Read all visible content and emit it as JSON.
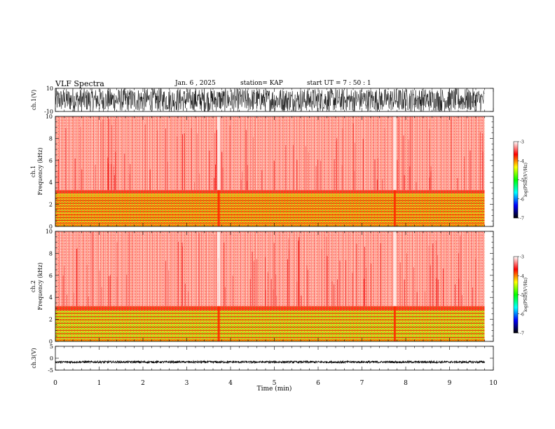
{
  "header": {
    "title": "VLF Spectra",
    "date": "Jan. 6 , 2025",
    "station": "station= KAP",
    "start": "start UT = 7 : 50 : 1"
  },
  "colorbar": {
    "ticks": [
      -3,
      -4,
      -5,
      -6,
      -7
    ],
    "label": "log(PSD)(V²/Hz)",
    "colors": [
      "#ffffff",
      "#ff0000",
      "#ffff00",
      "#00ff00",
      "#00ffff",
      "#0000ff",
      "#000000"
    ]
  },
  "chart_data": [
    {
      "type": "line",
      "name": "waveform-ch1",
      "ylabel": "ch.1(V)",
      "ylim": [
        -10,
        10
      ],
      "yticks": [
        "10",
        "-10"
      ],
      "xlim": [
        0,
        10
      ],
      "data_xmax": 9.8,
      "amplitude_range": [
        -10,
        10
      ]
    },
    {
      "type": "heatmap",
      "name": "spectrogram-ch1",
      "ylabel_lines": [
        "ch.1",
        "Frequency (kHz)"
      ],
      "ylim": [
        0,
        10
      ],
      "yticks": [
        0,
        2,
        4,
        6,
        8,
        10
      ],
      "xlim": [
        0,
        10
      ],
      "data_xmax": 9.8,
      "bands": [
        {
          "from": 0.0,
          "to": 0.2,
          "color": "#ff8c00"
        },
        {
          "from": 0.2,
          "to": 3.0,
          "color": "#f4b41a"
        },
        {
          "from": 3.0,
          "to": 3.3,
          "color": "#ff3b1f"
        },
        {
          "from": 3.3,
          "to": 10.0,
          "color": "#ffb3a8"
        }
      ],
      "lines_khz": [
        0.3,
        0.55,
        0.8,
        1.05,
        1.35,
        1.6,
        1.85,
        2.1,
        2.35,
        2.6
      ],
      "event_minutes": [
        3.73,
        7.75
      ]
    },
    {
      "type": "heatmap",
      "name": "spectrogram-ch2",
      "ylabel_lines": [
        "ch.2",
        "Frequency (kHz)"
      ],
      "ylim": [
        0,
        10
      ],
      "yticks": [
        0,
        2,
        4,
        6,
        8,
        10
      ],
      "xlim": [
        0,
        10
      ],
      "data_xmax": 9.8,
      "bands": [
        {
          "from": 0.0,
          "to": 0.2,
          "color": "#ff8c00"
        },
        {
          "from": 0.2,
          "to": 2.8,
          "color": "#d8d81c"
        },
        {
          "from": 2.8,
          "to": 3.2,
          "color": "#ff3b1f"
        },
        {
          "from": 3.2,
          "to": 10.0,
          "color": "#ffb3a8"
        }
      ],
      "lines_khz": [
        0.35,
        0.7,
        1.0,
        1.3,
        1.65,
        1.95,
        2.25,
        2.55
      ],
      "event_minutes": [
        3.73,
        7.75
      ]
    },
    {
      "type": "line",
      "name": "waveform-ch3",
      "ylabel": "ch.3(V)",
      "ylim": [
        -5,
        5
      ],
      "yticks": [
        "5",
        "0",
        "-5"
      ],
      "xlim": [
        0,
        10
      ],
      "data_xmax": 9.8,
      "amplitude_range": [
        -2,
        -1.2
      ]
    }
  ],
  "xaxis": {
    "label": "Time (min)",
    "ticks": [
      0,
      1,
      2,
      3,
      4,
      5,
      6,
      7,
      8,
      9,
      10
    ]
  }
}
